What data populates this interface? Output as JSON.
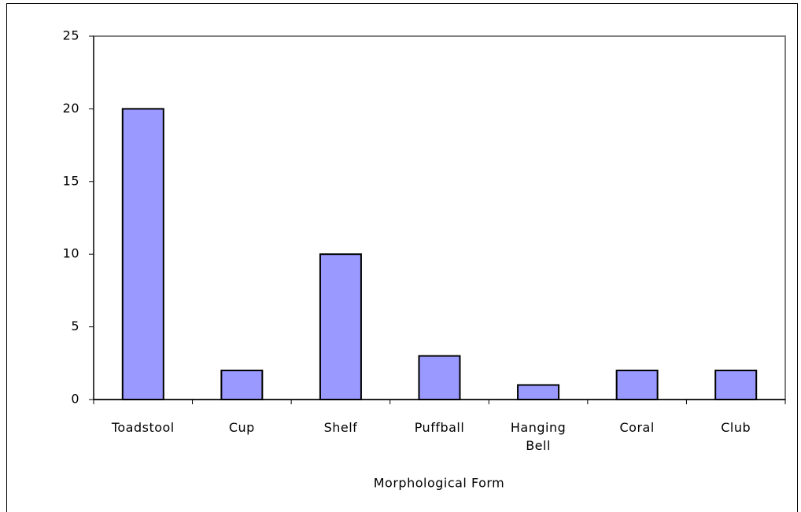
{
  "chart_data": {
    "type": "bar",
    "categories": [
      "Toadstool",
      "Cup",
      "Shelf",
      "Puffball",
      "Hanging Bell",
      "Coral",
      "Club"
    ],
    "values": [
      20,
      2,
      10,
      3,
      1,
      2,
      2
    ],
    "color": "#9999ff",
    "x_label": "Morphological Form",
    "ylim": [
      0,
      25
    ],
    "yticks": [
      0,
      5,
      10,
      15,
      20,
      25
    ],
    "grid": false
  }
}
